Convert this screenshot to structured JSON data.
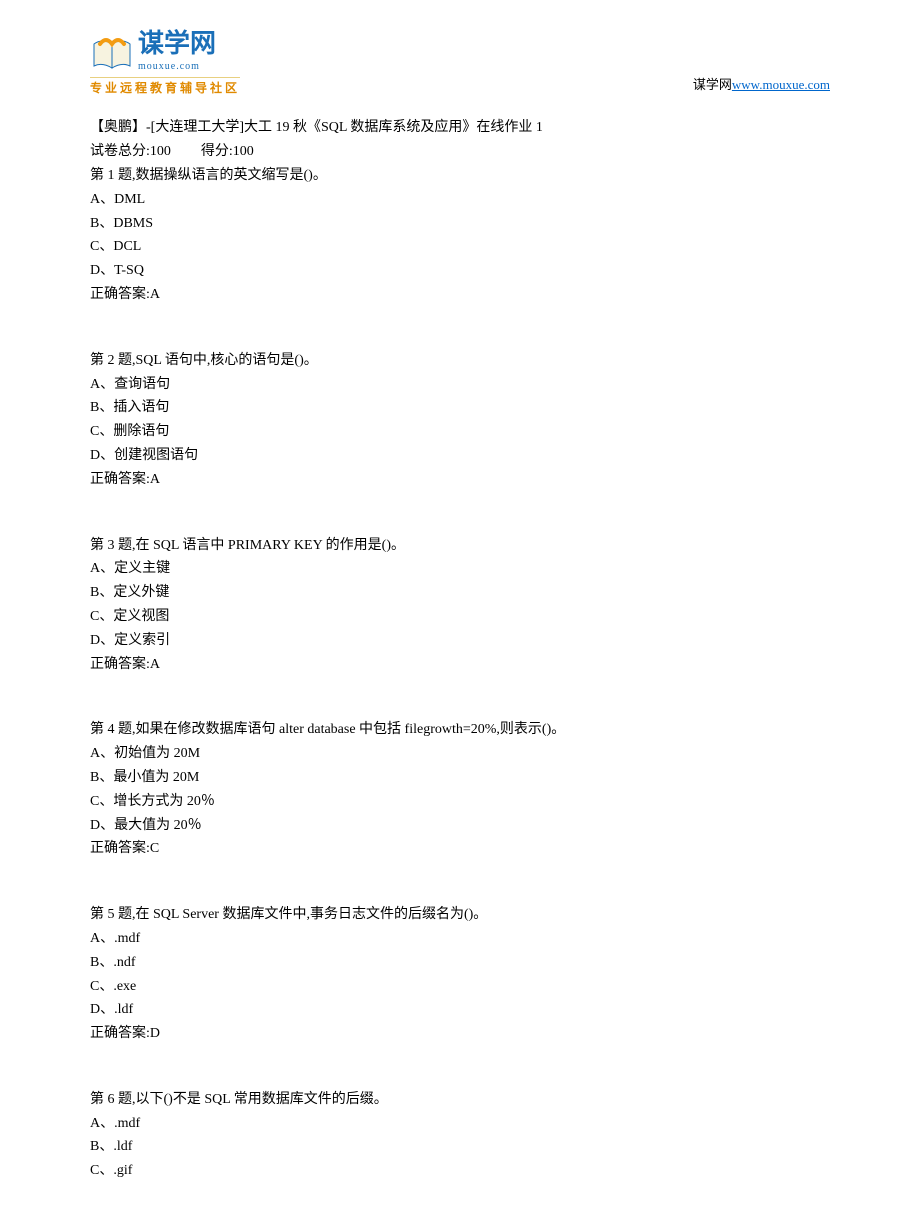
{
  "header": {
    "logo_cn": "谋学网",
    "logo_py": "mouxue.com",
    "tagline": "专业远程教育辅导社区",
    "site_label": "谋学网",
    "site_url": "www.mouxue.com",
    "colors": {
      "logo_blue": "#1a6fb8",
      "tagline_orange": "#e08a00",
      "book_orange": "#f39c12",
      "link_blue": "#0066cc"
    }
  },
  "doc": {
    "title": "【奥鹏】-[大连理工大学]大工 19 秋《SQL 数据库系统及应用》在线作业 1",
    "score_line_a": "试卷总分:100",
    "score_line_b": "得分:100"
  },
  "questions": [
    {
      "stem": "第 1 题,数据操纵语言的英文缩写是()。",
      "opts": [
        "A、DML",
        "B、DBMS",
        "C、DCL",
        "D、T-SQ"
      ],
      "answer": "正确答案:A"
    },
    {
      "stem": "第 2 题,SQL 语句中,核心的语句是()。",
      "opts": [
        "A、查询语句",
        "B、插入语句",
        "C、删除语句",
        "D、创建视图语句"
      ],
      "answer": "正确答案:A"
    },
    {
      "stem": "第 3 题,在 SQL 语言中 PRIMARY KEY 的作用是()。",
      "opts": [
        "A、定义主键",
        "B、定义外键",
        "C、定义视图",
        "D、定义索引"
      ],
      "answer": "正确答案:A"
    },
    {
      "stem": "第 4 题,如果在修改数据库语句 alter database 中包括 filegrowth=20%,则表示()。",
      "opts": [
        "A、初始值为 20M",
        "B、最小值为 20M",
        "C、增长方式为 20％",
        "D、最大值为 20％"
      ],
      "answer": "正确答案:C"
    },
    {
      "stem": "第 5 题,在 SQL Server 数据库文件中,事务日志文件的后缀名为()。",
      "opts": [
        "A、.mdf",
        "B、.ndf",
        "C、.exe",
        "D、.ldf"
      ],
      "answer": "正确答案:D"
    },
    {
      "stem": "第 6 题,以下()不是 SQL 常用数据库文件的后缀。",
      "opts": [
        "A、.mdf",
        "B、.ldf",
        "C、.gif"
      ],
      "answer": ""
    }
  ]
}
